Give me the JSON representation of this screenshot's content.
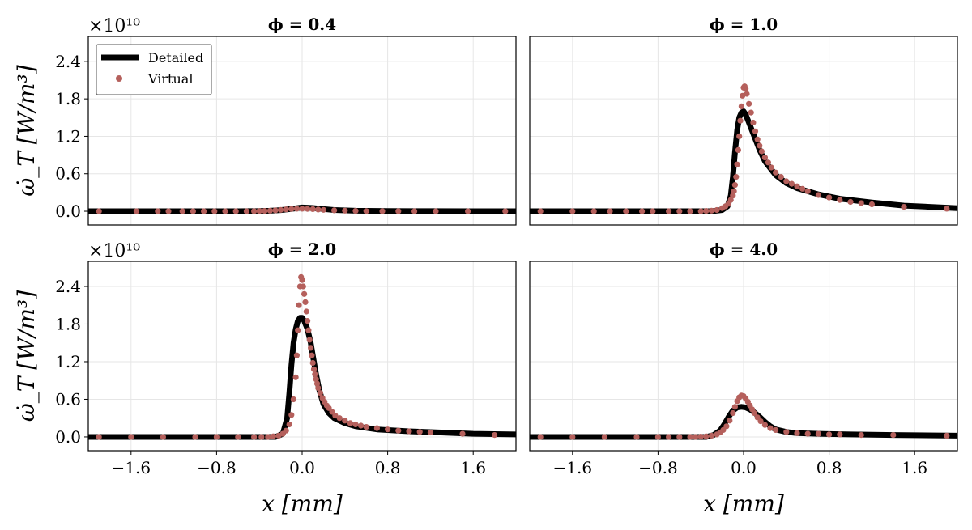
{
  "chart_data": [
    {
      "type": "line",
      "title": "ϕ = 0.4",
      "multiplier": "×10¹⁰",
      "xlabel": "",
      "ylabel": "ω̇_T [W/m³]",
      "xlim": [
        -2.0,
        2.0
      ],
      "ylim": [
        -0.22,
        2.8
      ],
      "series": [
        {
          "name": "Detailed",
          "kind": "line",
          "x": [
            -2.0,
            -0.6,
            -0.4,
            -0.3,
            -0.2,
            -0.1,
            0.0,
            0.1,
            0.2,
            0.3,
            0.5,
            0.8,
            1.2,
            1.6,
            2.0
          ],
          "y": [
            0.0,
            0.0,
            0.003,
            0.008,
            0.018,
            0.038,
            0.06,
            0.052,
            0.035,
            0.02,
            0.008,
            0.003,
            0.001,
            0.0,
            0.0
          ]
        },
        {
          "name": "Virtual",
          "kind": "scatter",
          "x": [
            -1.9,
            -1.55,
            -1.35,
            -1.25,
            -1.12,
            -1.02,
            -0.92,
            -0.82,
            -0.72,
            -0.62,
            -0.52,
            -0.45,
            -0.4,
            -0.35,
            -0.3,
            -0.25,
            -0.2,
            -0.15,
            -0.1,
            -0.05,
            0.0,
            0.05,
            0.1,
            0.15,
            0.2,
            0.3,
            0.4,
            0.5,
            0.6,
            0.75,
            0.9,
            1.05,
            1.25,
            1.55,
            1.9
          ],
          "y": [
            0.0,
            0.0,
            0.0,
            0.0,
            0.0,
            0.0,
            0.0,
            0.0,
            0.0,
            0.0,
            0.0,
            0.002,
            0.004,
            0.006,
            0.01,
            0.015,
            0.022,
            0.03,
            0.036,
            0.04,
            0.04,
            0.038,
            0.034,
            0.028,
            0.022,
            0.014,
            0.009,
            0.005,
            0.003,
            0.002,
            0.001,
            0.0,
            0.0,
            0.0,
            0.0
          ]
        }
      ],
      "xticks_visible": false,
      "yticks": [
        0.0,
        0.6,
        1.2,
        1.8,
        2.4
      ],
      "ytick_labels": [
        "0.0",
        "0.6",
        "1.2",
        "1.8",
        "2.4"
      ]
    },
    {
      "type": "line",
      "title": "ϕ = 1.0",
      "multiplier": "",
      "xlabel": "",
      "ylabel": "",
      "xlim": [
        -2.0,
        2.0
      ],
      "ylim": [
        -0.22,
        2.8
      ],
      "series": [
        {
          "name": "Detailed",
          "kind": "line",
          "x": [
            -2.0,
            -0.3,
            -0.2,
            -0.15,
            -0.12,
            -0.1,
            -0.08,
            -0.06,
            -0.04,
            -0.02,
            0.0,
            0.02,
            0.05,
            0.1,
            0.15,
            0.2,
            0.3,
            0.4,
            0.5,
            0.7,
            0.9,
            1.2,
            1.5,
            2.0
          ],
          "y": [
            0.0,
            0.0,
            0.02,
            0.08,
            0.25,
            0.55,
            0.95,
            1.3,
            1.5,
            1.58,
            1.6,
            1.55,
            1.42,
            1.2,
            0.98,
            0.8,
            0.58,
            0.45,
            0.37,
            0.27,
            0.2,
            0.14,
            0.09,
            0.05
          ]
        },
        {
          "name": "Virtual",
          "kind": "scatter",
          "x": [
            -1.9,
            -1.6,
            -1.4,
            -1.25,
            -1.1,
            -0.95,
            -0.85,
            -0.7,
            -0.6,
            -0.5,
            -0.4,
            -0.35,
            -0.3,
            -0.25,
            -0.2,
            -0.17,
            -0.14,
            -0.12,
            -0.1,
            -0.09,
            -0.08,
            -0.07,
            -0.06,
            -0.05,
            -0.04,
            -0.03,
            -0.02,
            -0.01,
            0.0,
            0.01,
            0.02,
            0.03,
            0.05,
            0.07,
            0.09,
            0.11,
            0.13,
            0.15,
            0.17,
            0.2,
            0.23,
            0.26,
            0.3,
            0.35,
            0.4,
            0.45,
            0.5,
            0.55,
            0.6,
            0.7,
            0.8,
            0.9,
            1.0,
            1.1,
            1.2,
            1.5,
            1.9
          ],
          "y": [
            0.0,
            0.0,
            0.0,
            0.0,
            0.0,
            0.0,
            0.0,
            0.0,
            0.0,
            0.0,
            0.0,
            0.005,
            0.01,
            0.02,
            0.05,
            0.08,
            0.12,
            0.18,
            0.25,
            0.32,
            0.42,
            0.55,
            0.75,
            0.98,
            1.2,
            1.45,
            1.68,
            1.85,
            1.98,
            2.0,
            1.96,
            1.88,
            1.72,
            1.58,
            1.42,
            1.28,
            1.15,
            1.05,
            0.96,
            0.86,
            0.78,
            0.7,
            0.62,
            0.55,
            0.48,
            0.44,
            0.4,
            0.36,
            0.32,
            0.26,
            0.22,
            0.18,
            0.15,
            0.13,
            0.11,
            0.07,
            0.04
          ]
        }
      ],
      "xticks_visible": false,
      "yticks_visible": false
    },
    {
      "type": "line",
      "title": "ϕ = 2.0",
      "multiplier": "×10¹⁰",
      "xlabel": "x [mm]",
      "ylabel": "ω̇_T [W/m³]",
      "xlim": [
        -2.0,
        2.0
      ],
      "ylim": [
        -0.22,
        2.8
      ],
      "series": [
        {
          "name": "Detailed",
          "kind": "line",
          "x": [
            -2.0,
            -0.25,
            -0.18,
            -0.14,
            -0.12,
            -0.1,
            -0.08,
            -0.06,
            -0.04,
            -0.02,
            0.0,
            0.02,
            0.05,
            0.08,
            0.1,
            0.13,
            0.16,
            0.2,
            0.25,
            0.3,
            0.4,
            0.5,
            0.7,
            1.0,
            1.3,
            1.6,
            2.0
          ],
          "y": [
            0.0,
            0.0,
            0.05,
            0.3,
            0.7,
            1.15,
            1.5,
            1.72,
            1.85,
            1.9,
            1.9,
            1.85,
            1.72,
            1.5,
            1.3,
            1.0,
            0.75,
            0.52,
            0.38,
            0.3,
            0.22,
            0.17,
            0.12,
            0.09,
            0.07,
            0.05,
            0.04
          ]
        },
        {
          "name": "Virtual",
          "kind": "scatter",
          "x": [
            -1.9,
            -1.6,
            -1.3,
            -1.0,
            -0.8,
            -0.6,
            -0.45,
            -0.38,
            -0.32,
            -0.27,
            -0.22,
            -0.18,
            -0.15,
            -0.12,
            -0.1,
            -0.08,
            -0.06,
            -0.05,
            -0.04,
            -0.03,
            -0.02,
            -0.01,
            0.0,
            0.01,
            0.02,
            0.03,
            0.04,
            0.05,
            0.06,
            0.07,
            0.08,
            0.09,
            0.1,
            0.11,
            0.12,
            0.13,
            0.14,
            0.15,
            0.17,
            0.19,
            0.21,
            0.23,
            0.25,
            0.28,
            0.31,
            0.35,
            0.4,
            0.45,
            0.5,
            0.55,
            0.6,
            0.7,
            0.8,
            0.9,
            1.0,
            1.1,
            1.2,
            1.5,
            1.8
          ],
          "y": [
            0.0,
            0.0,
            0.0,
            0.0,
            0.0,
            0.0,
            0.0,
            0.0,
            0.0,
            0.01,
            0.02,
            0.05,
            0.1,
            0.2,
            0.35,
            0.6,
            0.95,
            1.3,
            1.7,
            2.1,
            2.4,
            2.55,
            2.5,
            2.4,
            2.28,
            2.15,
            2.0,
            1.85,
            1.7,
            1.55,
            1.42,
            1.3,
            1.18,
            1.08,
            1.0,
            0.92,
            0.85,
            0.78,
            0.7,
            0.62,
            0.56,
            0.5,
            0.46,
            0.4,
            0.34,
            0.3,
            0.26,
            0.22,
            0.2,
            0.18,
            0.16,
            0.14,
            0.12,
            0.1,
            0.09,
            0.08,
            0.07,
            0.05,
            0.03
          ]
        }
      ],
      "xticks": [
        -1.6,
        -0.8,
        0.0,
        0.8,
        1.6
      ],
      "xtick_labels": [
        "−1.6",
        "−0.8",
        "0.0",
        "0.8",
        "1.6"
      ],
      "yticks": [
        0.0,
        0.6,
        1.2,
        1.8,
        2.4
      ],
      "ytick_labels": [
        "0.0",
        "0.6",
        "1.2",
        "1.8",
        "2.4"
      ]
    },
    {
      "type": "line",
      "title": "ϕ = 4.0",
      "multiplier": "",
      "xlabel": "x [mm]",
      "ylabel": "",
      "xlim": [
        -2.0,
        2.0
      ],
      "ylim": [
        -0.22,
        2.8
      ],
      "series": [
        {
          "name": "Detailed",
          "kind": "line",
          "x": [
            -2.0,
            -0.35,
            -0.28,
            -0.22,
            -0.18,
            -0.14,
            -0.1,
            -0.06,
            -0.02,
            0.02,
            0.06,
            0.1,
            0.15,
            0.2,
            0.25,
            0.3,
            0.4,
            0.5,
            0.7,
            1.0,
            1.4,
            2.0
          ],
          "y": [
            0.0,
            0.0,
            0.03,
            0.1,
            0.2,
            0.32,
            0.42,
            0.47,
            0.48,
            0.47,
            0.44,
            0.39,
            0.32,
            0.24,
            0.17,
            0.12,
            0.08,
            0.06,
            0.05,
            0.04,
            0.03,
            0.02
          ]
        },
        {
          "name": "Virtual",
          "kind": "scatter",
          "x": [
            -1.9,
            -1.6,
            -1.3,
            -1.0,
            -0.8,
            -0.7,
            -0.6,
            -0.5,
            -0.45,
            -0.4,
            -0.35,
            -0.3,
            -0.25,
            -0.22,
            -0.19,
            -0.16,
            -0.13,
            -0.1,
            -0.08,
            -0.06,
            -0.04,
            -0.02,
            0.0,
            0.02,
            0.04,
            0.06,
            0.08,
            0.1,
            0.13,
            0.16,
            0.2,
            0.25,
            0.3,
            0.4,
            0.5,
            0.6,
            0.7,
            0.8,
            0.9,
            1.1,
            1.4,
            1.9
          ],
          "y": [
            0.0,
            0.0,
            0.0,
            0.0,
            0.0,
            0.0,
            0.0,
            0.0,
            0.0,
            0.005,
            0.01,
            0.02,
            0.04,
            0.07,
            0.11,
            0.17,
            0.26,
            0.38,
            0.48,
            0.57,
            0.63,
            0.66,
            0.65,
            0.61,
            0.56,
            0.5,
            0.44,
            0.38,
            0.31,
            0.25,
            0.19,
            0.14,
            0.11,
            0.08,
            0.06,
            0.05,
            0.05,
            0.04,
            0.04,
            0.03,
            0.03,
            0.02
          ]
        }
      ],
      "xticks": [
        -1.6,
        -0.8,
        0.0,
        0.8,
        1.6
      ],
      "xtick_labels": [
        "−1.6",
        "−0.8",
        "0.0",
        "0.8",
        "1.6"
      ],
      "yticks_visible": false
    }
  ],
  "legend": {
    "position": "top-left of first panel",
    "items": [
      {
        "label": "Detailed",
        "kind": "line"
      },
      {
        "label": "Virtual",
        "kind": "marker"
      }
    ]
  },
  "colors": {
    "detailed": "#000000",
    "virtual": "#b5605c",
    "grid": "#e6e6e6",
    "frame": "#000000"
  },
  "grid": true
}
